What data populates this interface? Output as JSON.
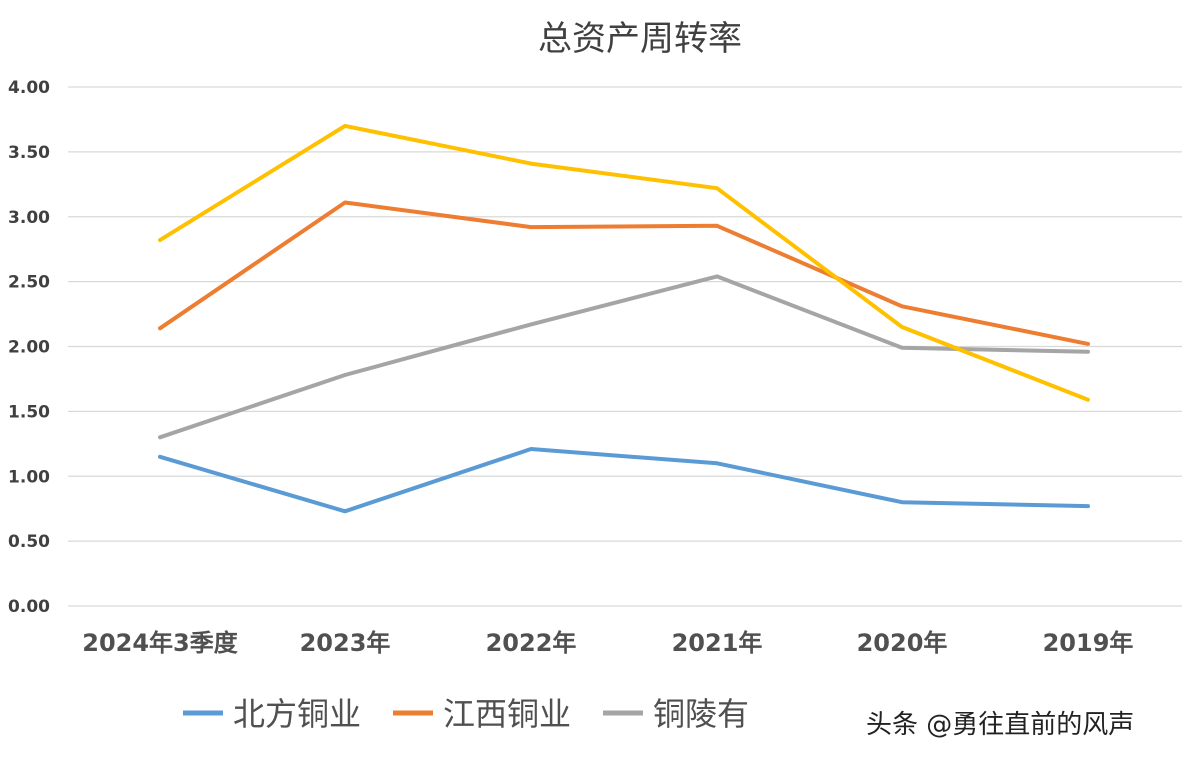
{
  "chart_data": {
    "type": "line",
    "title": "总资产周转率",
    "categories": [
      "2024年3季度",
      "2023年",
      "2022年",
      "2021年",
      "2020年",
      "2019年"
    ],
    "ylim": [
      0,
      4
    ],
    "yticks": [
      "0.00",
      "0.50",
      "1.00",
      "1.50",
      "2.00",
      "2.50",
      "3.00",
      "3.50",
      "4.00"
    ],
    "grid": true,
    "legend_position": "bottom",
    "series": [
      {
        "name": "北方铜业",
        "color": "#5b9bd5",
        "values": [
          1.15,
          0.73,
          1.21,
          1.1,
          0.8,
          0.77
        ]
      },
      {
        "name": "江西铜业",
        "color": "#ed7d31",
        "values": [
          2.14,
          3.11,
          2.92,
          2.93,
          2.31,
          2.02
        ]
      },
      {
        "name": "铜陵有色",
        "color": "#a5a5a5",
        "values": [
          1.3,
          1.78,
          2.17,
          2.54,
          1.99,
          1.96
        ]
      },
      {
        "color": "#ffc000",
        "values": [
          2.82,
          3.7,
          3.41,
          3.22,
          2.15,
          1.59
        ]
      }
    ],
    "legend_visible_labels": [
      "北方铜业",
      "江西铜业",
      "铜陵有"
    ]
  },
  "watermark": "头条 @勇往直前的风声"
}
